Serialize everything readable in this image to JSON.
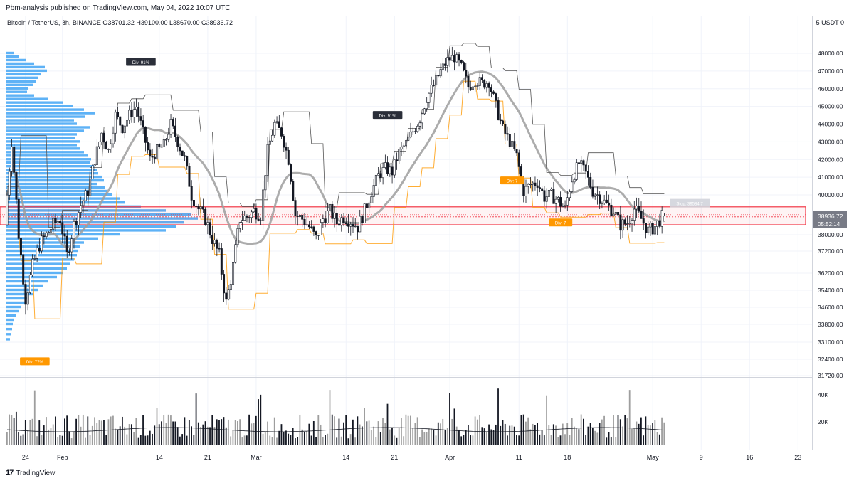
{
  "header": {
    "published_by": "Pbm-analysis published on TradingView.com, May 04, 2022 10:07 UTC",
    "symbol_line": "Bitcoin / TetherUS, 8h, BINANCE  O38701.32  H39100.00  L38670.00  C38936.72",
    "currency": "5 USDT 0"
  },
  "footer": {
    "brand": "TradingView",
    "logo": "17"
  },
  "colors": {
    "up": "#131722",
    "down": "#131722",
    "volume_profile": "#42a5f5",
    "vwap_line": "#9e9e9e",
    "orange": "#ff9800",
    "box": "#f23645",
    "grid": "#f0f3fa"
  },
  "chart_data": {
    "type": "candlestick",
    "symbol": "Bitcoin / TetherUS",
    "timeframe": "8h",
    "exchange": "BINANCE",
    "ohlc_last": {
      "open": 38701.32,
      "high": 39100.0,
      "low": 38670.0,
      "close": 38936.72
    },
    "y_ticks": [
      48000,
      47000,
      46000,
      45000,
      44000,
      43000,
      42000,
      41000,
      40000,
      38000,
      37200,
      36200,
      35400,
      34600,
      33800,
      33100,
      32400,
      31720
    ],
    "y_tick_labels": [
      "48000.00",
      "47000.00",
      "46000.00",
      "45000.00",
      "44000.00",
      "43000.00",
      "42000.00",
      "41000.00",
      "40000.00",
      "38000.00",
      "37200.00",
      "36200.00",
      "35400.00",
      "34600.00",
      "33800.00",
      "33100.00",
      "32400.00",
      "31720.00"
    ],
    "x_ticks": [
      {
        "label": "24",
        "bar": 8
      },
      {
        "label": "Feb",
        "bar": 24
      },
      {
        "label": "14",
        "bar": 66
      },
      {
        "label": "21",
        "bar": 87
      },
      {
        "label": "Mar",
        "bar": 108
      },
      {
        "label": "14",
        "bar": 147
      },
      {
        "label": "21",
        "bar": 168
      },
      {
        "label": "Apr",
        "bar": 192
      },
      {
        "label": "11",
        "bar": 222
      },
      {
        "label": "18",
        "bar": 243
      },
      {
        "label": "May",
        "bar": 280
      },
      {
        "label": "9",
        "bar": 301
      },
      {
        "label": "16",
        "bar": 322
      },
      {
        "label": "23",
        "bar": 343
      }
    ],
    "price_label": {
      "value": "38936.72",
      "countdown": "05:52:14"
    },
    "volume_ticks": [
      "40K",
      "20K"
    ],
    "zone": {
      "top": 39400,
      "bottom": 38500,
      "mid": 38900
    },
    "stop_label": "Stop: 39584.7",
    "annotations": [
      {
        "text": "Div: 91%",
        "bar": 58,
        "price": 47500,
        "style": "dark"
      },
      {
        "text": "Div: 91%",
        "bar": 165,
        "price": 44500,
        "style": "dark"
      },
      {
        "text": "Div: 77%",
        "bar": 12,
        "price": 32300,
        "style": "orange"
      },
      {
        "text": "Div: 7",
        "bar": 219,
        "price": 40800,
        "style": "orange"
      },
      {
        "text": "Div: 7",
        "bar": 240,
        "price": 38600,
        "style": "orange"
      }
    ],
    "path_points": [
      [
        0,
        38500
      ],
      [
        3,
        43000
      ],
      [
        6,
        38000
      ],
      [
        9,
        35000
      ],
      [
        12,
        36500
      ],
      [
        15,
        37500
      ],
      [
        18,
        38000
      ],
      [
        21,
        38500
      ],
      [
        24,
        38800
      ],
      [
        27,
        37000
      ],
      [
        30,
        38500
      ],
      [
        33,
        39500
      ],
      [
        36,
        40200
      ],
      [
        39,
        42000
      ],
      [
        42,
        43500
      ],
      [
        45,
        42500
      ],
      [
        48,
        44500
      ],
      [
        51,
        43800
      ],
      [
        54,
        44500
      ],
      [
        57,
        45000
      ],
      [
        60,
        43500
      ],
      [
        63,
        42000
      ],
      [
        66,
        42500
      ],
      [
        69,
        42800
      ],
      [
        72,
        44000
      ],
      [
        75,
        43000
      ],
      [
        78,
        42000
      ],
      [
        81,
        40000
      ],
      [
        84,
        39300
      ],
      [
        87,
        38800
      ],
      [
        90,
        37800
      ],
      [
        93,
        37000
      ],
      [
        96,
        34800
      ],
      [
        99,
        36500
      ],
      [
        102,
        38800
      ],
      [
        105,
        38900
      ],
      [
        108,
        39200
      ],
      [
        111,
        39000
      ],
      [
        114,
        42500
      ],
      [
        117,
        44000
      ],
      [
        120,
        43500
      ],
      [
        123,
        42000
      ],
      [
        126,
        39000
      ],
      [
        129,
        38800
      ],
      [
        132,
        38400
      ],
      [
        135,
        37800
      ],
      [
        138,
        38800
      ],
      [
        141,
        39200
      ],
      [
        144,
        38600
      ],
      [
        147,
        38900
      ],
      [
        150,
        38700
      ],
      [
        153,
        38400
      ],
      [
        156,
        39200
      ],
      [
        159,
        40200
      ],
      [
        162,
        41100
      ],
      [
        165,
        41500
      ],
      [
        168,
        41300
      ],
      [
        171,
        42400
      ],
      [
        174,
        42900
      ],
      [
        177,
        43600
      ],
      [
        180,
        44300
      ],
      [
        183,
        45500
      ],
      [
        186,
        46200
      ],
      [
        189,
        47000
      ],
      [
        192,
        47600
      ],
      [
        195,
        47800
      ],
      [
        198,
        47200
      ],
      [
        201,
        46100
      ],
      [
        204,
        46500
      ],
      [
        207,
        46300
      ],
      [
        210,
        46400
      ],
      [
        213,
        45000
      ],
      [
        216,
        43700
      ],
      [
        219,
        43000
      ],
      [
        222,
        42200
      ],
      [
        225,
        40200
      ],
      [
        228,
        40600
      ],
      [
        231,
        40700
      ],
      [
        234,
        39900
      ],
      [
        237,
        40000
      ],
      [
        240,
        39700
      ],
      [
        243,
        39300
      ],
      [
        246,
        40900
      ],
      [
        249,
        41800
      ],
      [
        252,
        41200
      ],
      [
        255,
        40200
      ],
      [
        258,
        39900
      ],
      [
        261,
        39500
      ],
      [
        264,
        39200
      ],
      [
        267,
        38500
      ],
      [
        270,
        38600
      ],
      [
        273,
        39300
      ],
      [
        276,
        38800
      ],
      [
        279,
        38200
      ],
      [
        282,
        38400
      ],
      [
        285,
        38900
      ]
    ],
    "volume_profile_bins": [
      [
        48000,
        12
      ],
      [
        47800,
        18
      ],
      [
        47600,
        28
      ],
      [
        47400,
        40
      ],
      [
        47200,
        55
      ],
      [
        47000,
        58
      ],
      [
        46800,
        50
      ],
      [
        46600,
        45
      ],
      [
        46400,
        42
      ],
      [
        46200,
        38
      ],
      [
        46000,
        32
      ],
      [
        45800,
        30
      ],
      [
        45600,
        40
      ],
      [
        45400,
        60
      ],
      [
        45200,
        80
      ],
      [
        45000,
        95
      ],
      [
        44800,
        110
      ],
      [
        44600,
        125
      ],
      [
        44400,
        112
      ],
      [
        44200,
        96
      ],
      [
        44000,
        100
      ],
      [
        43800,
        118
      ],
      [
        43600,
        110
      ],
      [
        43400,
        100
      ],
      [
        43200,
        98
      ],
      [
        43000,
        105
      ],
      [
        42800,
        100
      ],
      [
        42600,
        104
      ],
      [
        42400,
        110
      ],
      [
        42200,
        115
      ],
      [
        42000,
        120
      ],
      [
        41800,
        118
      ],
      [
        41600,
        124
      ],
      [
        41400,
        128
      ],
      [
        41200,
        130
      ],
      [
        41000,
        135
      ],
      [
        40800,
        138
      ],
      [
        40600,
        128
      ],
      [
        40400,
        140
      ],
      [
        40200,
        142
      ],
      [
        40000,
        150
      ],
      [
        39800,
        160
      ],
      [
        39600,
        168
      ],
      [
        39400,
        190
      ],
      [
        39200,
        225
      ],
      [
        39000,
        260
      ],
      [
        38800,
        270
      ],
      [
        38600,
        250
      ],
      [
        38400,
        240
      ],
      [
        38200,
        225
      ],
      [
        38000,
        160
      ],
      [
        37800,
        130
      ],
      [
        37600,
        110
      ],
      [
        37400,
        104
      ],
      [
        37200,
        102
      ],
      [
        37000,
        100
      ],
      [
        36800,
        96
      ],
      [
        36600,
        90
      ],
      [
        36400,
        86
      ],
      [
        36200,
        80
      ],
      [
        36000,
        72
      ],
      [
        35800,
        60
      ],
      [
        35600,
        52
      ],
      [
        35400,
        45
      ],
      [
        35200,
        38
      ],
      [
        35000,
        32
      ],
      [
        34800,
        28
      ],
      [
        34600,
        22
      ],
      [
        34400,
        18
      ],
      [
        34200,
        14
      ],
      [
        34000,
        12
      ],
      [
        33800,
        10
      ],
      [
        33600,
        9
      ],
      [
        33400,
        8
      ],
      [
        33200,
        6
      ]
    ]
  }
}
